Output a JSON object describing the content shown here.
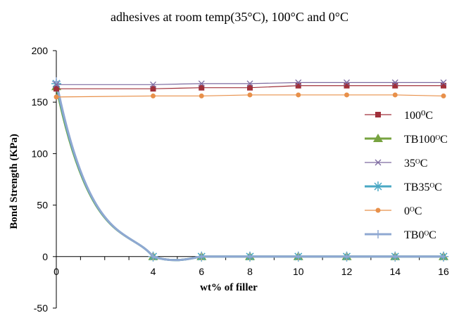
{
  "chart_data": {
    "type": "line",
    "title": "adhesives at room temp(35°C), 100°C and 0°C",
    "xlabel": "wt% of filler",
    "ylabel": "Bond Strength (KPa)",
    "x": [
      0,
      4,
      6,
      8,
      10,
      12,
      14,
      16
    ],
    "xlim": [
      0,
      16
    ],
    "ylim": [
      -50,
      200
    ],
    "xticks": [
      "0",
      "4",
      "6",
      "8",
      "10",
      "12",
      "14",
      "16"
    ],
    "yticks": [
      "-50",
      "0",
      "50",
      "100",
      "150",
      "200"
    ],
    "grid": false,
    "legend_position": "right",
    "series": [
      {
        "name": "100⁰C",
        "color": "#a0303a",
        "marker": "square",
        "smooth": false,
        "values": [
          163,
          163,
          164,
          164,
          166,
          166,
          166,
          166
        ]
      },
      {
        "name": "TB100ᴼC",
        "color": "#77a340",
        "marker": "triangle",
        "smooth": true,
        "values": [
          165,
          0,
          0,
          0,
          0,
          0,
          0,
          0
        ]
      },
      {
        "name": "35ᴼC",
        "color": "#7d6aa0",
        "marker": "x",
        "smooth": false,
        "values": [
          167,
          167,
          168,
          168,
          169,
          169,
          169,
          169
        ]
      },
      {
        "name": "TB35ᴼC",
        "color": "#4aa8c4",
        "marker": "asterisk",
        "smooth": true,
        "values": [
          168,
          0,
          0,
          0,
          0,
          0,
          0,
          0
        ]
      },
      {
        "name": "0ᴼC",
        "color": "#e8904a",
        "marker": "circle",
        "smooth": false,
        "values": [
          155,
          156,
          156,
          157,
          157,
          157,
          157,
          156
        ]
      },
      {
        "name": "TB0ᴼC",
        "color": "#8fa8d2",
        "marker": "plus",
        "smooth": true,
        "values": [
          170,
          0,
          0,
          0,
          0,
          0,
          0,
          0
        ]
      }
    ]
  }
}
